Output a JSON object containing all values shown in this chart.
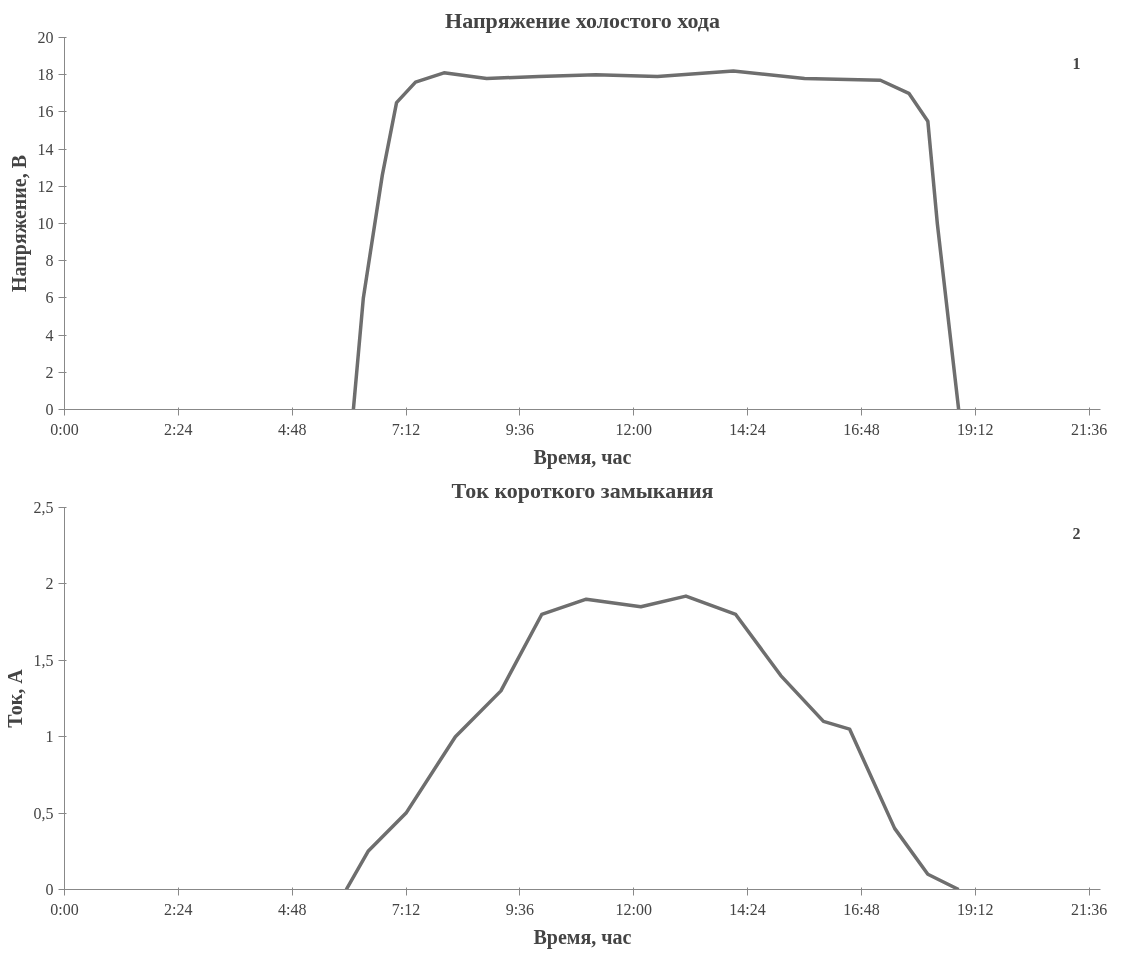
{
  "chart_data": [
    {
      "type": "line",
      "title": "Напряжение холостого хода",
      "xlabel": "Время, час",
      "ylabel": "Напряжение, В",
      "annotations": [
        "1"
      ],
      "x": [
        6.09,
        6.3,
        6.7,
        7.0,
        7.4,
        8.0,
        8.9,
        10.0,
        11.2,
        12.5,
        14.1,
        15.6,
        17.2,
        17.8,
        18.2,
        18.4,
        18.85
      ],
      "series": [
        {
          "color": "#6e6e6e",
          "values": [
            0,
            6,
            12.6,
            16.5,
            17.6,
            18.1,
            17.8,
            17.9,
            18.0,
            17.9,
            18.2,
            17.8,
            17.7,
            17.0,
            15.5,
            10,
            0
          ]
        }
      ],
      "xlim": [
        0,
        21.84
      ],
      "xticks": [
        {
          "value": 0,
          "label": "0:00"
        },
        {
          "value": 2.4,
          "label": "2:24"
        },
        {
          "value": 4.8,
          "label": "4:48"
        },
        {
          "value": 7.2,
          "label": "7:12"
        },
        {
          "value": 9.6,
          "label": "9:36"
        },
        {
          "value": 12,
          "label": "12:00"
        },
        {
          "value": 14.4,
          "label": "14:24"
        },
        {
          "value": 16.8,
          "label": "16:48"
        },
        {
          "value": 19.2,
          "label": "19:12"
        },
        {
          "value": 21.6,
          "label": "21:36"
        }
      ],
      "ylim": [
        0,
        20
      ],
      "yticks": [
        0,
        2,
        4,
        6,
        8,
        10,
        12,
        14,
        16,
        18,
        20
      ],
      "grid": false,
      "line_style": "solid"
    },
    {
      "type": "line",
      "title": "Ток короткого замыкания",
      "xlabel": "Время, час",
      "ylabel": "Ток, А",
      "annotations": [
        "2"
      ],
      "x": [
        5.94,
        6.4,
        7.2,
        8.24,
        9.2,
        10.06,
        11.0,
        12.15,
        13.1,
        14.15,
        15.1,
        16.0,
        16.55,
        17.5,
        18.2,
        18.85
      ],
      "series": [
        {
          "color": "#6e6e6e",
          "values": [
            0,
            0.25,
            0.5,
            1.0,
            1.3,
            1.8,
            1.9,
            1.85,
            1.92,
            1.8,
            1.4,
            1.1,
            1.05,
            0.4,
            0.1,
            0
          ]
        }
      ],
      "xlim": [
        0,
        21.84
      ],
      "xticks": [
        {
          "value": 0,
          "label": "0:00"
        },
        {
          "value": 2.4,
          "label": "2:24"
        },
        {
          "value": 4.8,
          "label": "4:48"
        },
        {
          "value": 7.2,
          "label": "7:12"
        },
        {
          "value": 9.6,
          "label": "9:36"
        },
        {
          "value": 12,
          "label": "12:00"
        },
        {
          "value": 14.4,
          "label": "14:24"
        },
        {
          "value": 16.8,
          "label": "16:48"
        },
        {
          "value": 19.2,
          "label": "19:12"
        },
        {
          "value": 21.6,
          "label": "21:36"
        }
      ],
      "ylim": [
        0,
        2.5
      ],
      "yticks": [
        0,
        {
          "value": 0.5,
          "label": "0,5"
        },
        1,
        {
          "value": 1.5,
          "label": "1,5"
        },
        2,
        {
          "value": 2.5,
          "label": "2,5"
        }
      ],
      "grid": false,
      "line_style": "solid"
    }
  ]
}
